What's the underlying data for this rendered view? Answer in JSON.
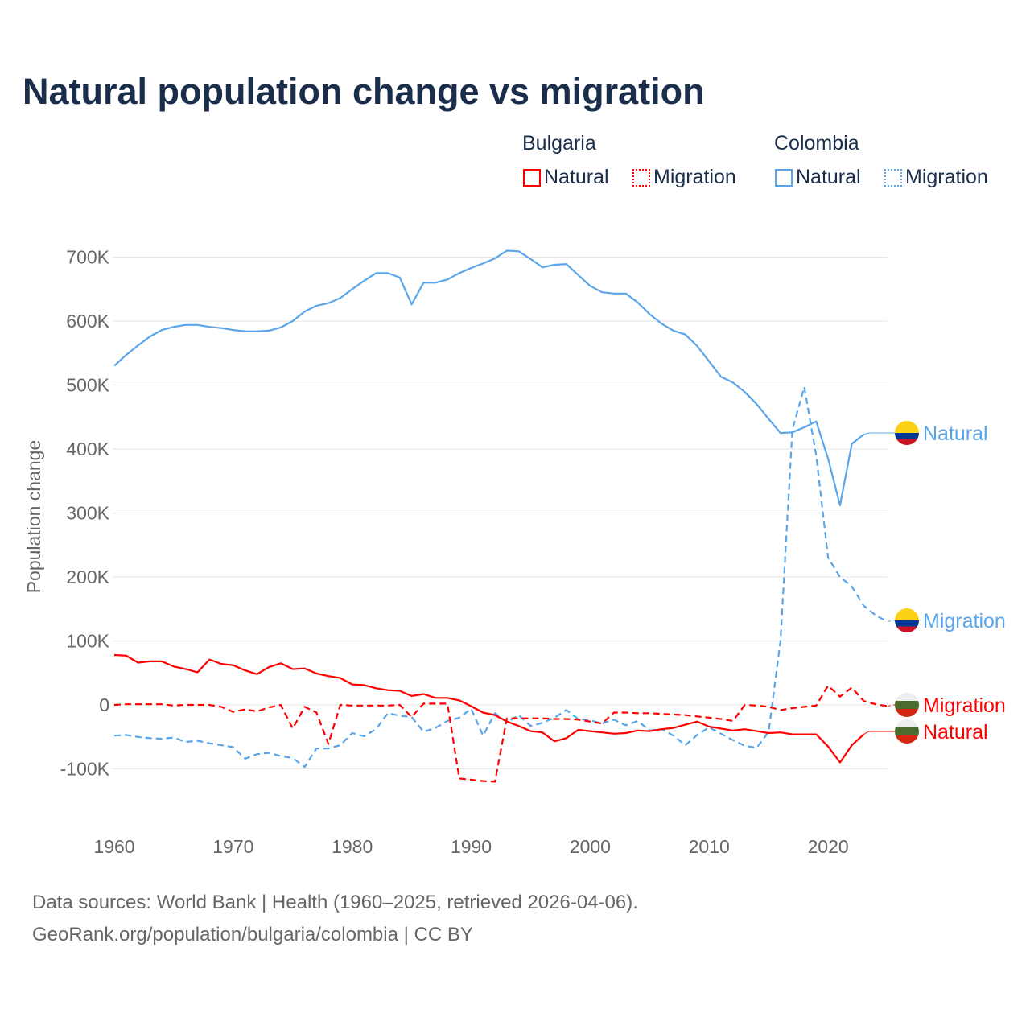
{
  "chart_data": {
    "type": "line",
    "title": "Natural population change vs migration",
    "ylabel": "Population change",
    "xlabel": "",
    "ylim": [
      -150,
      750
    ],
    "y_unit": "thousands",
    "y_ticks": [
      -100,
      0,
      100,
      200,
      300,
      400,
      500,
      600,
      700
    ],
    "y_tick_labels": [
      "-100K",
      "0",
      "100K",
      "200K",
      "300K",
      "400K",
      "500K",
      "600K",
      "700K"
    ],
    "x_ticks": [
      1960,
      1970,
      1980,
      1990,
      2000,
      2010,
      2020
    ],
    "x_tick_labels": [
      "1960",
      "1970",
      "1980",
      "1990",
      "2000",
      "2010",
      "2020"
    ],
    "xlim": [
      1960,
      2025
    ],
    "grid": true,
    "legend": {
      "placement": "top-right",
      "groups": [
        {
          "name": "Bulgaria",
          "items": [
            "Natural",
            "Migration"
          ]
        },
        {
          "name": "Colombia",
          "items": [
            "Natural",
            "Migration"
          ]
        }
      ]
    },
    "start_year": 1960,
    "series": [
      {
        "country": "Colombia",
        "name": "Natural",
        "label": "Natural",
        "color": "#5aa5ea",
        "dash": false,
        "flag": "colombia",
        "values": [
          530,
          547,
          562,
          576,
          586,
          591,
          594,
          594,
          591,
          589,
          586,
          584,
          584,
          585,
          590,
          600,
          615,
          624,
          628,
          636,
          650,
          663,
          675,
          675,
          668,
          626,
          660,
          660,
          665,
          675,
          683,
          690,
          698,
          710,
          709,
          697,
          684,
          688,
          689,
          672,
          655,
          645,
          643,
          643,
          629,
          611,
          596,
          585,
          579,
          561,
          537,
          513,
          504,
          489,
          470,
          447,
          425,
          426,
          434,
          443,
          385,
          312,
          408,
          423
        ]
      },
      {
        "country": "Colombia",
        "name": "Migration",
        "label": "Migration",
        "color": "#5aa5ea",
        "dash": true,
        "flag": "colombia",
        "values": [
          -48,
          -47,
          -50,
          -52,
          -53,
          -51,
          -58,
          -56,
          -60,
          -63,
          -66,
          -84,
          -77,
          -75,
          -80,
          -83,
          -97,
          -68,
          -68,
          -63,
          -44,
          -49,
          -38,
          -13,
          -17,
          -19,
          -42,
          -36,
          -25,
          -20,
          -6,
          -48,
          -13,
          -27,
          -16,
          -33,
          -28,
          -20,
          -8,
          -22,
          -24,
          -29,
          -23,
          -32,
          -25,
          -40,
          -38,
          -48,
          -63,
          -47,
          -35,
          -45,
          -55,
          -64,
          -67,
          -42,
          100,
          430,
          497,
          390,
          230,
          200,
          185,
          155,
          140,
          130
        ]
      },
      {
        "country": "Bulgaria",
        "name": "Migration",
        "label": "Migration",
        "color": "#ff0000",
        "dash": true,
        "flag": "bulgaria",
        "values": [
          0,
          1,
          1,
          1,
          1,
          -1,
          0,
          0,
          0,
          -3,
          -11,
          -7,
          -10,
          -4,
          0,
          -37,
          -3,
          -12,
          -61,
          0,
          -1,
          -1,
          -1,
          -1,
          0,
          -19,
          2,
          2,
          2,
          -115,
          -117,
          -119,
          -120,
          -21,
          -21,
          -21,
          -21,
          -22,
          -22,
          -23,
          -26,
          -29,
          -12,
          -12,
          -13,
          -13,
          -14,
          -15,
          -16,
          -18,
          -20,
          -22,
          -25,
          0,
          -1,
          -3,
          -8,
          -5,
          -3,
          -1,
          30,
          13,
          27,
          6,
          1,
          -2
        ]
      },
      {
        "country": "Bulgaria",
        "name": "Natural",
        "label": "Natural",
        "color": "#ff0000",
        "dash": false,
        "flag": "bulgaria",
        "values": [
          78,
          77,
          66,
          68,
          68,
          60,
          56,
          51,
          71,
          64,
          62,
          54,
          48,
          59,
          65,
          56,
          57,
          49,
          45,
          42,
          32,
          31,
          26,
          23,
          22,
          14,
          17,
          11,
          11,
          7,
          -2,
          -12,
          -16,
          -26,
          -33,
          -41,
          -43,
          -57,
          -52,
          -39,
          -41,
          -43,
          -45,
          -44,
          -40,
          -41,
          -38,
          -36,
          -31,
          -26,
          -34,
          -37,
          -40,
          -38,
          -41,
          -44,
          -43,
          -46,
          -46,
          -46,
          -65,
          -90,
          -63,
          -46
        ]
      }
    ]
  },
  "footer": {
    "line1": "Data sources: World Bank | Health (1960–2025, retrieved 2026-04-06).",
    "line2": "GeoRank.org/population/bulgaria/colombia | CC BY"
  }
}
